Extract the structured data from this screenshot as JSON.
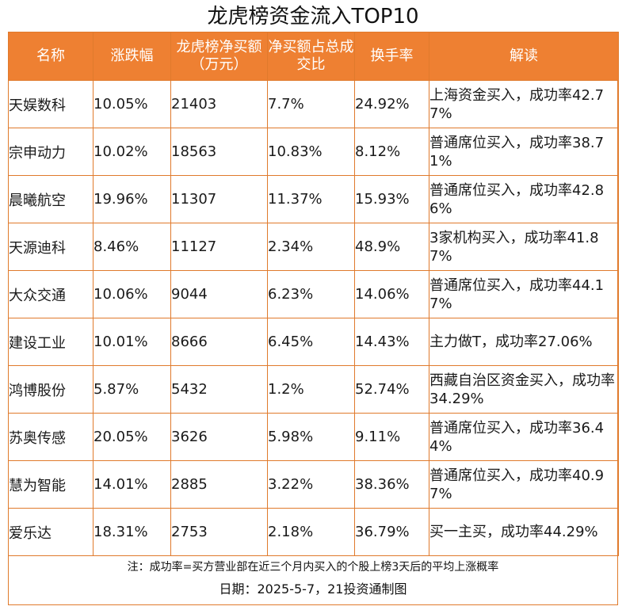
{
  "title": "龙虎榜资金流入TOP10",
  "headers": [
    "名称",
    "涨跌幅",
    "龙虎榜净买额（万元）",
    "净买额占总成交比",
    "换手率",
    "解读"
  ],
  "rows": [
    [
      "天娱数科",
      "10.05%",
      "21403",
      "7.7%",
      "24.92%",
      "上海资金买入，成功率42.77%"
    ],
    [
      "宗申动力",
      "10.02%",
      "18563",
      "10.83%",
      "8.12%",
      "普通席位买入，成功率38.71%"
    ],
    [
      "晨曦航空",
      "19.96%",
      "11307",
      "11.37%",
      "15.93%",
      "普通席位买入，成功率42.86%"
    ],
    [
      "天源迪科",
      "8.46%",
      "11127",
      "2.34%",
      "48.9%",
      "3家机构买入，成功率41.87%"
    ],
    [
      "大众交通",
      "10.06%",
      "9044",
      "6.23%",
      "14.06%",
      "普通席位买入，成功率44.17%"
    ],
    [
      "建设工业",
      "10.01%",
      "8666",
      "6.45%",
      "14.43%",
      "主力做T，成功率27.06%"
    ],
    [
      "鸿博股份",
      "5.87%",
      "5432",
      "1.2%",
      "52.74%",
      "西藏自治区资金买入，成功率34.29%"
    ],
    [
      "苏奥传感",
      "20.05%",
      "3626",
      "5.98%",
      "9.11%",
      "普通席位买入，成功率36.44%"
    ],
    [
      "慧为智能",
      "14.01%",
      "2885",
      "3.22%",
      "38.36%",
      "普通席位买入，成功率40.97%"
    ],
    [
      "爱乐达",
      "18.31%",
      "2753",
      "2.18%",
      "36.79%",
      "买一主买，成功率44.29%"
    ]
  ],
  "note": "注：成功率=买方营业部在近三个月内买入的个股上榜3天后的平均上涨概率",
  "date_line": "日期：2025-5-7，21投资通制图",
  "colors": {
    "header_bg": "#ee8032",
    "border": "#e07a2c",
    "header_text": "#ffffff"
  }
}
